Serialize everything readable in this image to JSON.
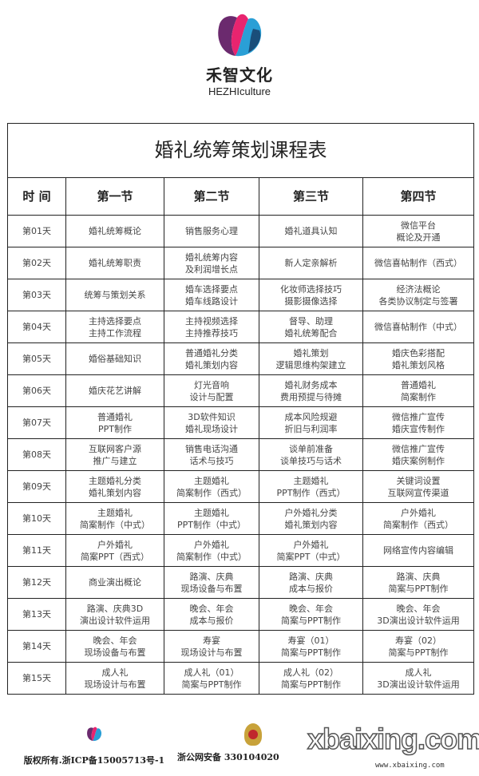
{
  "brand": {
    "name_cn": "禾智文化",
    "name_en": "HEZHIculture"
  },
  "title": "婚礼统筹策划课程表",
  "headers": [
    "时 间",
    "第一节",
    "第二节",
    "第三节",
    "第四节"
  ],
  "rows": [
    [
      "第01天",
      "婚礼统筹概论",
      "销售服务心理",
      "婚礼道具认知",
      "微信平台\n概论及开通"
    ],
    [
      "第02天",
      "婚礼统筹职责",
      "婚礼统筹内容\n及利润增长点",
      "新人定亲解析",
      "微信喜帖制作（西式）"
    ],
    [
      "第03天",
      "统筹与策划关系",
      "婚车选择要点\n婚车线路设计",
      "化妆师选择技巧\n摄影摄像选择",
      "经济法概论\n各类协议制定与签署"
    ],
    [
      "第04天",
      "主持选择要点\n主持工作流程",
      "主持视频选择\n主持推荐技巧",
      "督导、助理\n婚礼统筹配合",
      "微信喜帖制作（中式）"
    ],
    [
      "第05天",
      "婚俗基础知识",
      "普通婚礼分类\n婚礼策划内容",
      "婚礼策划\n逻辑思维构架建立",
      "婚庆色彩搭配\n婚礼策划风格"
    ],
    [
      "第06天",
      "婚庆花艺讲解",
      "灯光音响\n设计与配置",
      "婚礼财务成本\n费用预提与待摊",
      "普通婚礼\n简案制作"
    ],
    [
      "第07天",
      "普通婚礼\nPPT制作",
      "3D软件知识\n婚礼现场设计",
      "成本风险规避\n折旧与利润率",
      "微信推广宣传\n婚庆宣传制作"
    ],
    [
      "第08天",
      "互联网客户源\n推广与建立",
      "销售电话沟通\n话术与技巧",
      "谈单前准备\n谈单技巧与话术",
      "微信推广宣传\n婚庆案例制作"
    ],
    [
      "第09天",
      "主题婚礼分类\n婚礼策划内容",
      "主题婚礼\n简案制作（西式）",
      "主题婚礼\nPPT制作（西式）",
      "关键词设置\n互联网宣传渠道"
    ],
    [
      "第10天",
      "主题婚礼\n简案制作（中式）",
      "主题婚礼\nPPT制作（中式）",
      "户外婚礼分类\n婚礼策划内容",
      "户外婚礼\n简案制作（西式）"
    ],
    [
      "第11天",
      "户外婚礼\n简案PPT（西式）",
      "户外婚礼\n简案制作（中式）",
      "户外婚礼\n简案PPT（中式）",
      "网络宣传内容编辑"
    ],
    [
      "第12天",
      "商业演出概论",
      "路演、庆典\n现场设备与布置",
      "路演、庆典\n成本与报价",
      "路演、庆典\n简案与PPT制作"
    ],
    [
      "第13天",
      "路演、庆典3D\n演出设计软件运用",
      "晚会、年会\n成本与报价",
      "晚会、年会\n简案与PPT制作",
      "晚会、年会\n3D演出设计软件运用"
    ],
    [
      "第14天",
      "晚会、年会\n现场设备与布置",
      "寿宴\n现场设计与布置",
      "寿宴（01）\n简案与PPT制作",
      "寿宴（02）\n简案与PPT制作"
    ],
    [
      "第15天",
      "成人礼\n现场设计与布置",
      "成人礼（01）\n简案与PPT制作",
      "成人礼（02）\n简案与PPT制作",
      "成人礼\n3D演出设计软件运用"
    ]
  ],
  "footer": {
    "copyright": "版权所有.浙ICP备15005713号-1",
    "police": "浙公网安备 330104020",
    "watermark": "xbaixing.com",
    "watermark_url": "www.xbaixing.com"
  },
  "colors": {
    "logo_pink": "#e8246f",
    "logo_blue": "#2a9fd6",
    "logo_purple": "#6b2a6e"
  }
}
